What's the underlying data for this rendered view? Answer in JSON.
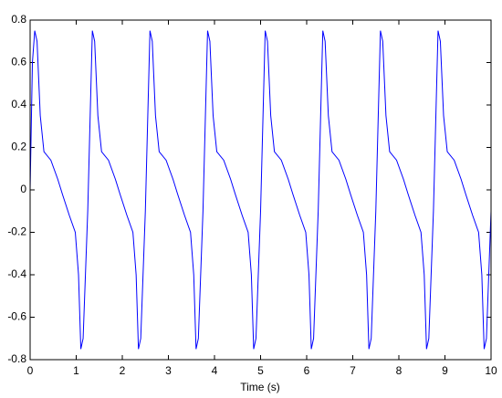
{
  "chart_data": {
    "type": "line",
    "x_label": "Time (s)",
    "x": [
      0,
      0.05,
      0.1,
      0.15,
      0.22,
      0.3,
      0.45,
      0.6,
      0.7,
      0.85,
      0.98,
      1.05,
      1.1,
      1.15,
      1.25,
      1.35,
      1.4,
      1.47,
      1.55,
      1.7,
      1.85,
      1.95,
      2.1,
      2.23,
      2.3,
      2.35,
      2.4,
      2.5,
      2.6,
      2.65,
      2.72,
      2.8,
      2.95,
      3.1,
      3.2,
      3.35,
      3.48,
      3.55,
      3.6,
      3.65,
      3.75,
      3.85,
      3.9,
      3.97,
      4.05,
      4.2,
      4.35,
      4.45,
      4.6,
      4.73,
      4.8,
      4.85,
      4.9,
      5.0,
      5.1,
      5.15,
      5.22,
      5.3,
      5.45,
      5.6,
      5.7,
      5.85,
      5.98,
      6.05,
      6.1,
      6.15,
      6.25,
      6.35,
      6.4,
      6.47,
      6.55,
      6.7,
      6.85,
      6.95,
      7.1,
      7.23,
      7.3,
      7.35,
      7.4,
      7.5,
      7.6,
      7.65,
      7.72,
      7.8,
      7.95,
      8.1,
      8.2,
      8.35,
      8.48,
      8.55,
      8.6,
      8.65,
      8.75,
      8.85,
      8.9,
      8.97,
      9.05,
      9.2,
      9.35,
      9.45,
      9.6,
      9.73,
      9.8,
      9.85,
      9.9,
      10.0
    ],
    "series": [
      {
        "color": "#0000ff",
        "values": [
          0.0,
          0.6,
          0.75,
          0.7,
          0.35,
          0.18,
          0.14,
          0.05,
          -0.02,
          -0.12,
          -0.2,
          -0.4,
          -0.75,
          -0.7,
          -0.1,
          0.75,
          0.7,
          0.35,
          0.18,
          0.14,
          0.05,
          -0.02,
          -0.12,
          -0.2,
          -0.4,
          -0.75,
          -0.7,
          -0.1,
          0.75,
          0.7,
          0.35,
          0.18,
          0.14,
          0.05,
          -0.02,
          -0.12,
          -0.2,
          -0.4,
          -0.75,
          -0.7,
          -0.1,
          0.75,
          0.7,
          0.35,
          0.18,
          0.14,
          0.05,
          -0.02,
          -0.12,
          -0.2,
          -0.4,
          -0.75,
          -0.7,
          -0.1,
          0.75,
          0.7,
          0.35,
          0.18,
          0.14,
          0.05,
          -0.02,
          -0.12,
          -0.2,
          -0.4,
          -0.75,
          -0.7,
          -0.1,
          0.75,
          0.7,
          0.35,
          0.18,
          0.14,
          0.05,
          -0.02,
          -0.12,
          -0.2,
          -0.4,
          -0.75,
          -0.7,
          -0.1,
          0.75,
          0.7,
          0.35,
          0.18,
          0.14,
          0.05,
          -0.02,
          -0.12,
          -0.2,
          -0.4,
          -0.75,
          -0.7,
          -0.1,
          0.75,
          0.7,
          0.35,
          0.18,
          0.14,
          0.05,
          -0.02,
          -0.12,
          -0.2,
          -0.4,
          -0.75,
          -0.7,
          -0.1
        ]
      }
    ],
    "xlim": [
      0,
      10
    ],
    "xticks": [
      0,
      1,
      2,
      3,
      4,
      5,
      6,
      7,
      8,
      9,
      10
    ],
    "ylim": [
      -0.8,
      0.8
    ],
    "yticks": [
      -0.8,
      -0.6,
      -0.4,
      -0.2,
      0,
      0.2,
      0.4,
      0.6,
      0.8
    ],
    "grid": false
  }
}
